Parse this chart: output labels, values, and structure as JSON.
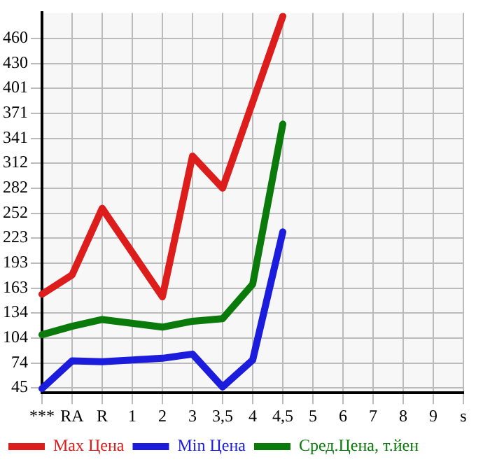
{
  "chart_data": {
    "type": "line",
    "categories": [
      "***",
      "RA",
      "R",
      "1",
      "2",
      "3",
      "3,5",
      "4",
      "4,5",
      "5",
      "6",
      "7",
      "8",
      "9",
      "s"
    ],
    "series": [
      {
        "name": "Max Цена",
        "color": "#dd1c1c",
        "values": [
          156,
          179,
          258,
          null,
          153,
          320,
          282,
          null,
          486,
          null,
          null,
          null,
          null,
          null,
          null
        ]
      },
      {
        "name": "Min Цена",
        "color": "#1c1cdd",
        "values": [
          44,
          77,
          76,
          null,
          80,
          85,
          46,
          78,
          230,
          null,
          null,
          null,
          null,
          null,
          null
        ]
      },
      {
        "name": "Сред.Цена, т.йен",
        "color": "#0a7a0a",
        "values": [
          108,
          118,
          126,
          null,
          117,
          124,
          127,
          168,
          358,
          null,
          null,
          null,
          null,
          null,
          null
        ]
      }
    ],
    "ylim": [
      39,
      490
    ],
    "yticks": [
      45,
      74,
      104,
      134,
      163,
      193,
      223,
      252,
      282,
      312,
      341,
      371,
      401,
      430,
      460
    ],
    "grid": true,
    "legend": "bottom",
    "marker": "none",
    "line_style": "solid"
  }
}
